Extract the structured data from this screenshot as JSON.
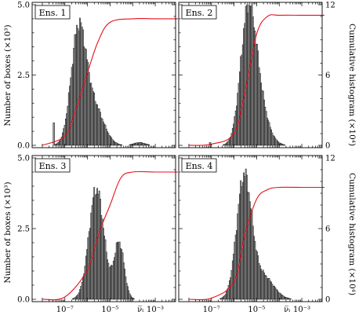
{
  "chart_data": {
    "type": "bar",
    "xscale": "log",
    "x_ticks": [
      "10⁻⁷",
      "10⁻⁵",
      "ν̅ᵢ",
      "10⁻³"
    ],
    "left_axis": {
      "label": "Number of boxes (×10³)",
      "ticks": [
        "0.0",
        "2.5",
        "5.0"
      ],
      "ylim": [
        0,
        5.0
      ]
    },
    "right_axis": {
      "label": "Cumulative histogram (×10⁴)",
      "ticks": [
        "0",
        "6",
        "12"
      ],
      "ylim": [
        0,
        12
      ]
    },
    "colors": {
      "histogram_fill": "#9a9a9a",
      "histogram_edge": "#000000",
      "cumulative_line": "#e8111b"
    },
    "panels": [
      {
        "label": "Ens. 1",
        "histogram": {
          "x": [
            1e-08,
            1e-07,
            3e-07,
            1e-06,
            3e-06,
            1e-05,
            3e-05,
            0.0001,
            0.0003
          ],
          "peak_x": 4e-07,
          "peak_boxes": 4.0,
          "shoulder_x": 2e-06,
          "shoulder_boxes": 2.4,
          "tail_bump_x": 0.0002,
          "tail_bump_boxes": 0.1,
          "outlier_x": 3e-08,
          "outlier_boxes": 0.8
        },
        "cumulative": {
          "x": [
            1e-08,
            1e-07,
            3e-07,
            1e-06,
            3e-06,
            1e-05,
            0.0001,
            0.001,
            0.01
          ],
          "y": [
            0,
            0.8,
            3.0,
            6.2,
            8.9,
            10.5,
            10.8,
            10.8,
            10.8
          ]
        }
      },
      {
        "label": "Ens. 2",
        "histogram": {
          "x": [
            1e-08,
            1e-07,
            1e-06,
            3e-06,
            1e-05,
            3e-05,
            0.0001,
            0.001
          ],
          "peak_x": 4e-06,
          "peak_boxes": 3.9,
          "shoulder_x": 1e-05,
          "shoulder_boxes": 3.1,
          "outlier_x": 8e-08,
          "outlier_boxes": 0.1
        },
        "cumulative": {
          "x": [
            1e-08,
            1e-07,
            1e-06,
            3e-06,
            1e-05,
            3e-05,
            0.0001,
            0.001,
            0.01
          ],
          "y": [
            0,
            0.1,
            1.0,
            4.5,
            9.5,
            11.0,
            11.1,
            11.1,
            11.1
          ]
        }
      },
      {
        "label": "Ens. 3",
        "histogram": {
          "x": [
            1e-08,
            1e-07,
            1e-06,
            3e-06,
            1e-05,
            3e-05,
            0.0001
          ],
          "peak_x": 2.5e-06,
          "peak_boxes": 3.9,
          "second_peak_x": 2.5e-05,
          "second_peak_boxes": 2.0
        },
        "cumulative": {
          "x": [
            1e-08,
            1e-07,
            1e-06,
            3e-06,
            1e-05,
            3e-05,
            0.0001,
            0.001,
            0.01
          ],
          "y": [
            0,
            0.2,
            2.5,
            5.5,
            8.0,
            10.3,
            10.8,
            10.8,
            10.8
          ]
        }
      },
      {
        "label": "Ens. 4",
        "histogram": {
          "x": [
            1e-08,
            1e-07,
            1e-06,
            3e-06,
            1e-05,
            3e-05,
            0.0001,
            0.0003
          ],
          "peak_x": 2.8e-06,
          "peak_boxes": 4.3,
          "tail_x": 2e-05,
          "tail_boxes": 0.8
        },
        "cumulative": {
          "x": [
            1e-08,
            1e-07,
            1e-06,
            3e-06,
            1e-05,
            3e-05,
            0.0001,
            0.001,
            0.01
          ],
          "y": [
            0,
            0.1,
            1.5,
            5.5,
            8.5,
            9.3,
            9.5,
            9.5,
            9.5
          ]
        }
      }
    ]
  }
}
